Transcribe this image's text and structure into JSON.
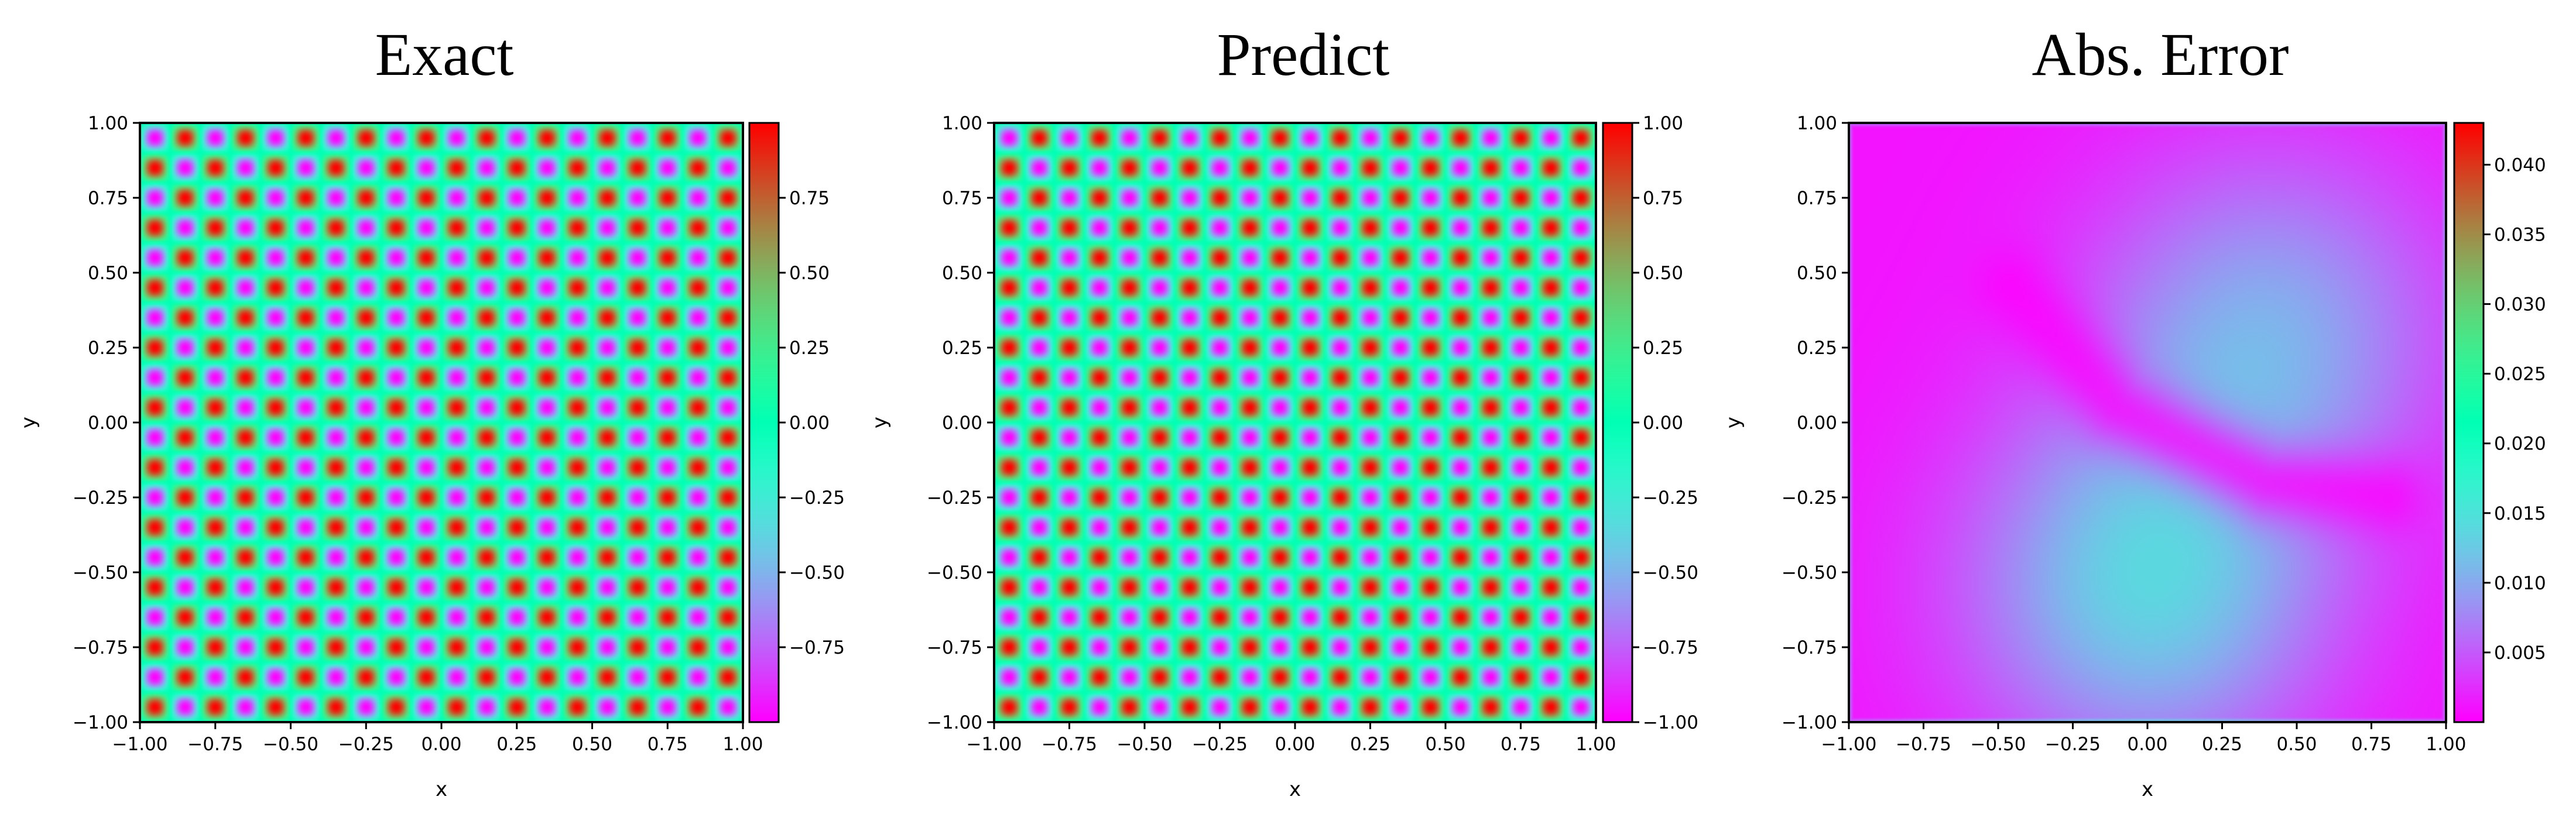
{
  "chart_data": [
    {
      "type": "heatmap",
      "title": "Exact",
      "xlabel": "x",
      "ylabel": "y",
      "xlim": [
        -1.0,
        1.0
      ],
      "ylim": [
        -1.0,
        1.0
      ],
      "x_ticks": [
        "−1.00",
        "−0.75",
        "−0.50",
        "−0.25",
        "0.00",
        "0.25",
        "0.50",
        "0.75",
        "1.00"
      ],
      "y_ticks": [
        "1.00",
        "0.75",
        "0.50",
        "0.25",
        "0.00",
        "−0.25",
        "−0.50",
        "−0.75",
        "−1.00"
      ],
      "colormap": "rainbow",
      "colorbar": {
        "min": -1.0,
        "max": 1.0,
        "ticks": [
          0.75,
          0.5,
          0.25,
          0.0,
          -0.25,
          -0.5,
          -0.75
        ],
        "tick_labels": [
          "0.75",
          "0.50",
          "0.25",
          "0.00",
          "−0.25",
          "−0.50",
          "−0.75"
        ]
      },
      "field": {
        "formula": "sin(10πx)·sin(10πy)",
        "cells_per_axis": 20
      }
    },
    {
      "type": "heatmap",
      "title": "Predict",
      "xlabel": "x",
      "ylabel": "y",
      "xlim": [
        -1.0,
        1.0
      ],
      "ylim": [
        -1.0,
        1.0
      ],
      "x_ticks": [
        "−1.00",
        "−0.75",
        "−0.50",
        "−0.25",
        "0.00",
        "0.25",
        "0.50",
        "0.75",
        "1.00"
      ],
      "y_ticks": [
        "1.00",
        "0.75",
        "0.50",
        "0.25",
        "0.00",
        "−0.25",
        "−0.50",
        "−0.75",
        "−1.00"
      ],
      "colormap": "rainbow",
      "colorbar": {
        "min": -1.0,
        "max": 1.0,
        "ticks": [
          1.0,
          0.75,
          0.5,
          0.25,
          0.0,
          -0.25,
          -0.5,
          -0.75,
          -1.0
        ],
        "tick_labels": [
          "1.00",
          "0.75",
          "0.50",
          "0.25",
          "0.00",
          "−0.25",
          "−0.50",
          "−0.75",
          "−1.00"
        ]
      },
      "field": {
        "formula": "sin(10πx)·sin(10πy)",
        "cells_per_axis": 20
      }
    },
    {
      "type": "heatmap",
      "title": "Abs. Error",
      "xlabel": "x",
      "ylabel": "y",
      "xlim": [
        -1.0,
        1.0
      ],
      "ylim": [
        -1.0,
        1.0
      ],
      "x_ticks": [
        "−1.00",
        "−0.75",
        "−0.50",
        "−0.25",
        "0.00",
        "0.25",
        "0.50",
        "0.75",
        "1.00"
      ],
      "y_ticks": [
        "1.00",
        "0.75",
        "0.50",
        "0.25",
        "0.00",
        "−0.25",
        "−0.50",
        "−0.75",
        "−1.00"
      ],
      "colormap": "rainbow",
      "colorbar": {
        "min": 0.0,
        "max": 0.043,
        "ticks": [
          0.04,
          0.035,
          0.03,
          0.025,
          0.02,
          0.015,
          0.01,
          0.005
        ],
        "tick_labels": [
          "0.040",
          "0.035",
          "0.030",
          "0.025",
          "0.020",
          "0.015",
          "0.010",
          "0.005"
        ]
      },
      "field": {
        "background": 0.001,
        "blobs": [
          {
            "x": 0.0,
            "y": -0.55,
            "peak": 0.012
          },
          {
            "x": 0.4,
            "y": 0.3,
            "peak": 0.009
          }
        ],
        "valley_path": [
          [
            -0.45,
            0.45
          ],
          [
            -0.1,
            0.05
          ],
          [
            0.4,
            -0.2
          ],
          [
            0.8,
            -0.25
          ]
        ]
      }
    }
  ]
}
